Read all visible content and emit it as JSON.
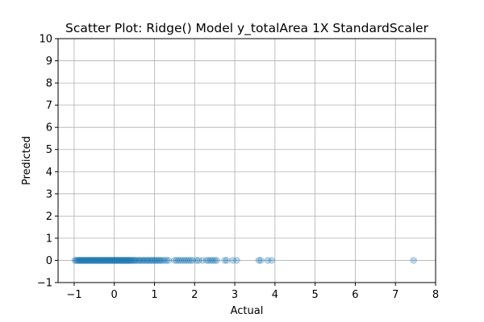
{
  "chart_data": {
    "type": "scatter",
    "title": "Scatter Plot: Ridge() Model y_totalArea 1X StandardScaler",
    "xlabel": "Actual",
    "ylabel": "Predicted",
    "xlim": [
      -1.4,
      8
    ],
    "ylim": [
      -1,
      10
    ],
    "xticks": [
      -1,
      0,
      1,
      2,
      3,
      4,
      5,
      6,
      7,
      8
    ],
    "yticks": [
      -1,
      0,
      1,
      2,
      3,
      4,
      5,
      6,
      7,
      8,
      9,
      10
    ],
    "grid": true,
    "point_color": "#1f77b4",
    "point_opacity": 0.3,
    "x": [
      -0.98,
      -0.95,
      -0.92,
      -0.9,
      -0.88,
      -0.86,
      -0.84,
      -0.82,
      -0.8,
      -0.78,
      -0.76,
      -0.74,
      -0.72,
      -0.7,
      -0.68,
      -0.66,
      -0.64,
      -0.62,
      -0.6,
      -0.58,
      -0.56,
      -0.54,
      -0.52,
      -0.5,
      -0.48,
      -0.46,
      -0.44,
      -0.42,
      -0.4,
      -0.38,
      -0.36,
      -0.34,
      -0.32,
      -0.3,
      -0.28,
      -0.26,
      -0.24,
      -0.22,
      -0.2,
      -0.18,
      -0.16,
      -0.14,
      -0.12,
      -0.1,
      -0.08,
      -0.06,
      -0.04,
      -0.02,
      0.0,
      0.02,
      0.04,
      0.06,
      0.08,
      0.1,
      0.12,
      0.14,
      0.16,
      0.18,
      0.2,
      0.22,
      0.24,
      0.26,
      0.28,
      0.3,
      0.32,
      0.34,
      0.36,
      0.38,
      0.4,
      0.42,
      0.45,
      0.48,
      0.5,
      0.53,
      0.56,
      0.6,
      0.63,
      0.66,
      0.7,
      0.73,
      0.76,
      0.8,
      0.83,
      0.86,
      0.9,
      0.93,
      0.96,
      1.0,
      1.03,
      1.06,
      1.1,
      1.13,
      1.16,
      1.2,
      1.25,
      1.3,
      1.35,
      1.5,
      1.55,
      1.6,
      1.65,
      1.7,
      1.75,
      1.8,
      1.85,
      1.9,
      1.95,
      2.05,
      2.1,
      2.2,
      2.3,
      2.35,
      2.4,
      2.45,
      2.5,
      2.55,
      2.75,
      2.8,
      2.95,
      3.05,
      3.6,
      3.65,
      3.82,
      3.92,
      7.45
    ],
    "y": [
      0,
      0,
      0,
      0,
      0,
      0,
      0,
      0,
      0,
      0,
      0,
      0,
      0,
      0,
      0,
      0,
      0,
      0,
      0,
      0,
      0,
      0,
      0,
      0,
      0,
      0,
      0,
      0,
      0,
      0,
      0,
      0,
      0,
      0,
      0,
      0,
      0,
      0,
      0,
      0,
      0,
      0,
      0,
      0,
      0,
      0,
      0,
      0,
      0,
      0,
      0,
      0,
      0,
      0,
      0,
      0,
      0,
      0,
      0,
      0,
      0,
      0,
      0,
      0,
      0,
      0,
      0,
      0,
      0,
      0,
      0,
      0,
      0,
      0,
      0,
      0,
      0,
      0,
      0,
      0,
      0,
      0,
      0,
      0,
      0,
      0,
      0,
      0,
      0,
      0,
      0,
      0,
      0,
      0,
      0,
      0,
      0,
      0,
      0,
      0,
      0,
      0,
      0,
      0,
      0,
      0,
      0,
      0,
      0,
      0,
      0,
      0,
      0,
      0,
      0,
      0,
      0,
      0,
      0,
      0,
      0,
      0,
      0,
      0,
      0
    ]
  }
}
